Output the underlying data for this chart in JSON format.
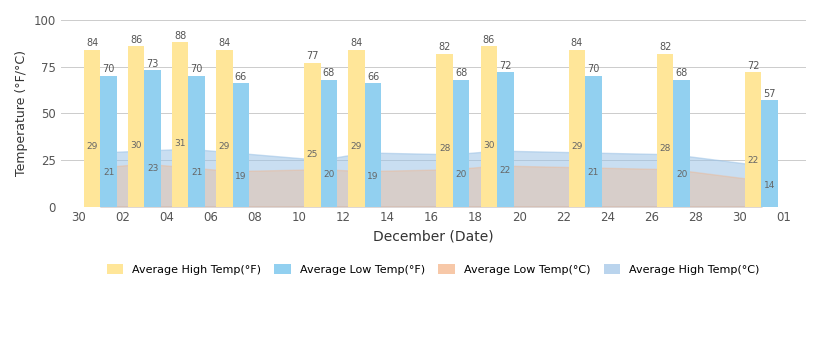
{
  "xtick_labels": [
    "30",
    "02",
    "04",
    "06",
    "08",
    "10",
    "12",
    "14",
    "16",
    "18",
    "20",
    "22",
    "24",
    "26",
    "28",
    "30",
    "01"
  ],
  "xtick_positions": [
    0,
    2,
    4,
    6,
    8,
    10,
    12,
    14,
    16,
    18,
    20,
    22,
    24,
    26,
    28,
    30,
    32
  ],
  "bar_x": [
    1,
    3,
    5,
    7,
    11,
    13,
    17,
    19,
    23,
    27,
    31
  ],
  "high_F_v": [
    84,
    86,
    88,
    84,
    77,
    84,
    82,
    86,
    84,
    82,
    72
  ],
  "low_F_v": [
    70,
    73,
    70,
    66,
    68,
    66,
    68,
    72,
    70,
    68,
    57
  ],
  "high_C_v": [
    29,
    30,
    31,
    29,
    25,
    29,
    28,
    30,
    29,
    28,
    22
  ],
  "low_C_v": [
    21,
    23,
    21,
    19,
    20,
    19,
    20,
    22,
    21,
    20,
    14
  ],
  "color_high_F": "#FFE699",
  "color_low_F": "#92D0F0",
  "color_low_C": "#F4B183",
  "color_high_C": "#9DC3E6",
  "ylabel": "Temperature (°F/°C)",
  "xlabel": "December (Date)",
  "ylim": [
    0,
    100
  ],
  "yticks": [
    0,
    25,
    50,
    75,
    100
  ],
  "legend_labels": [
    "Average High Temp(°F)",
    "Average Low Temp(°F)",
    "Average Low Temp(°C)",
    "Average High Temp(°C)"
  ]
}
